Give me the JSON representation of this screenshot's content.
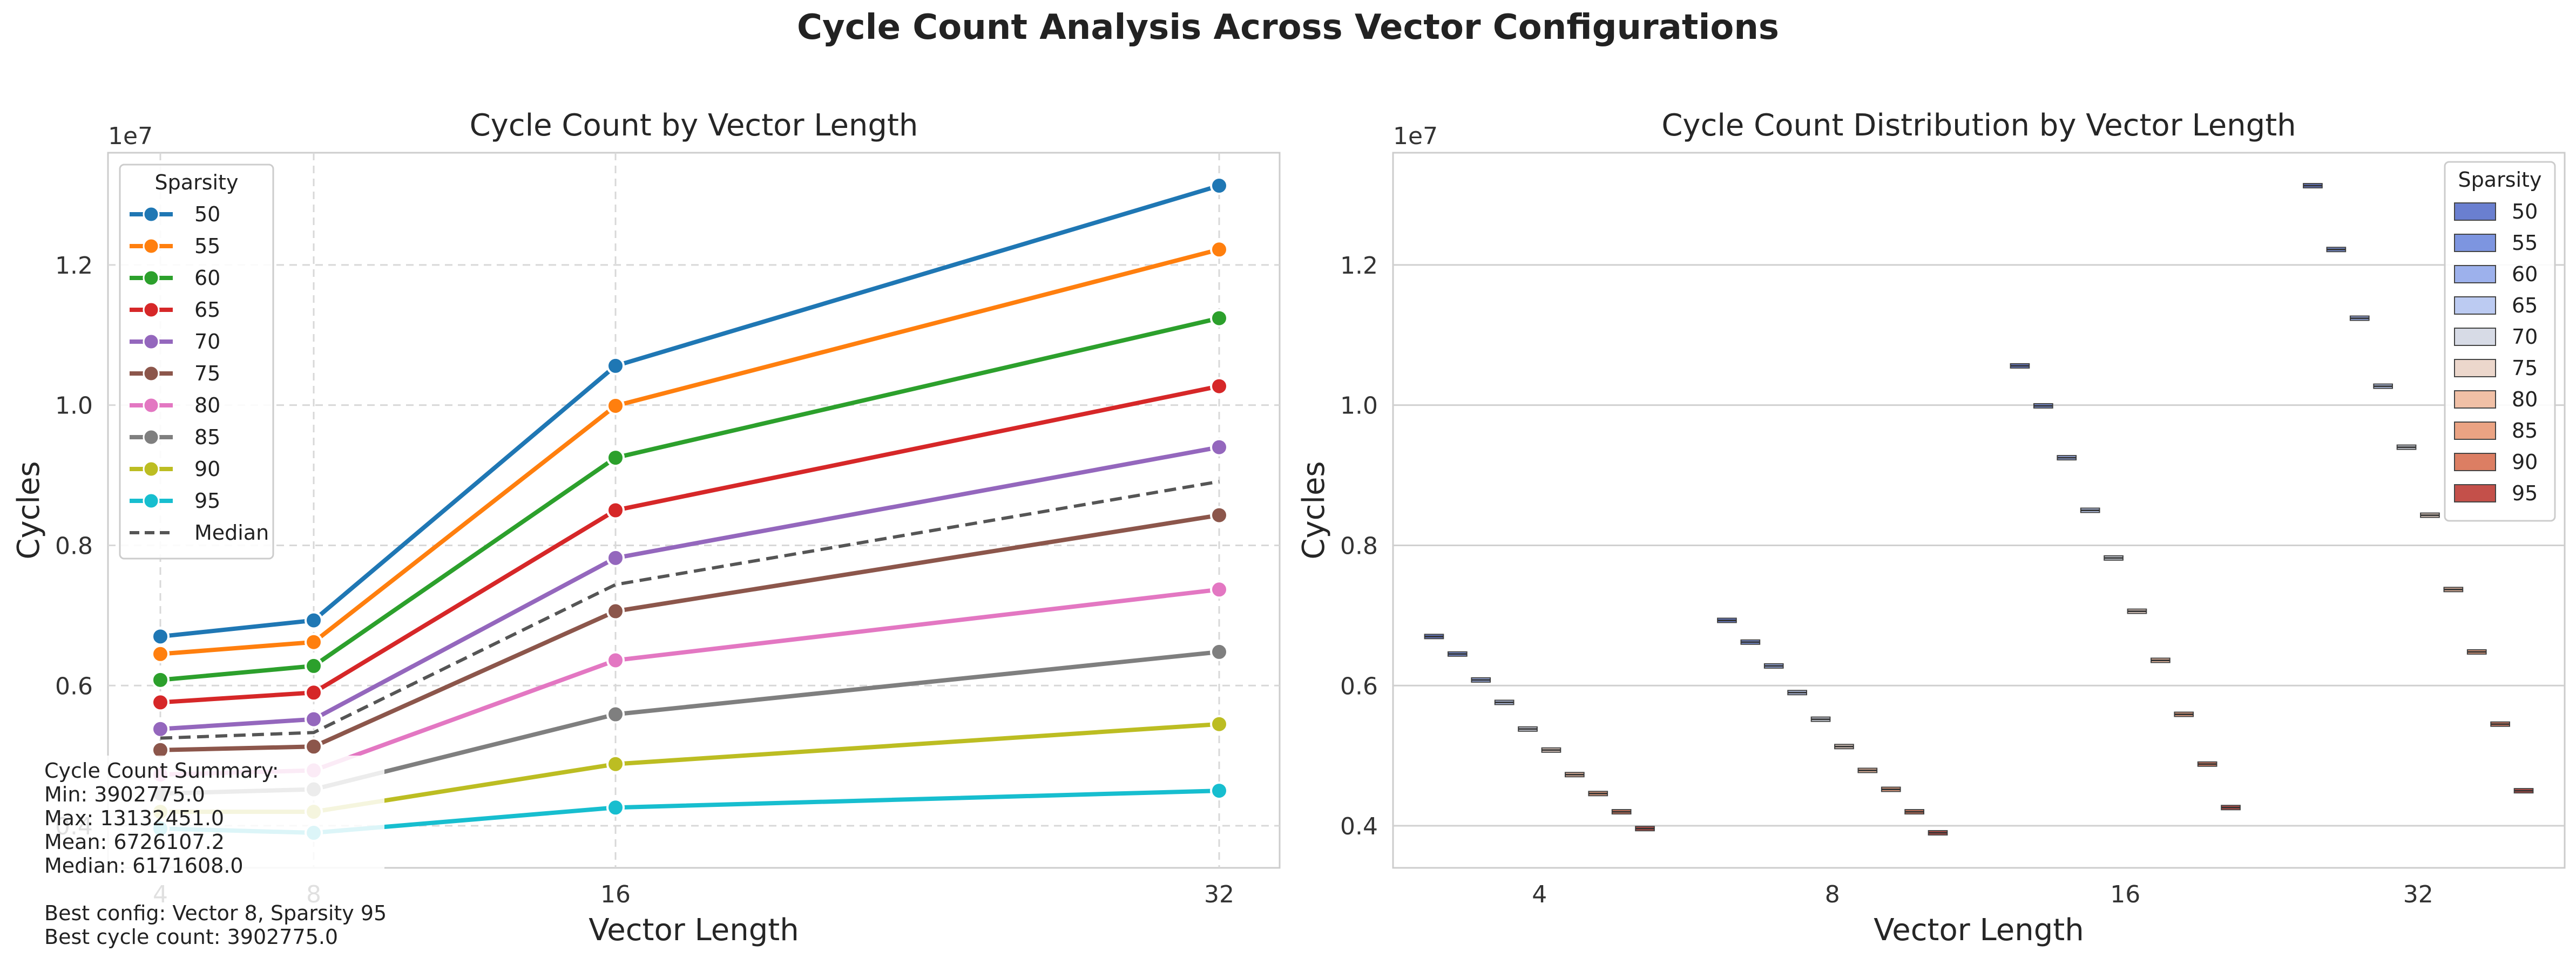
{
  "figure": {
    "suptitle": "Cycle Count Analysis Across Vector Configurations",
    "summary_text": "Cycle Count Summary:\nMin: 3902775.0\nMax: 13132451.0\nMean: 6726107.2\nMedian: 6171608.0\n\nBest config: Vector 8, Sparsity 95\nBest cycle count: 3902775.0"
  },
  "chart_data": [
    {
      "type": "line",
      "title": "Cycle Count by Vector Length",
      "xlabel": "Vector Length",
      "ylabel": "Cycles",
      "y_scale_label": "1e7",
      "x": [
        4,
        8,
        16,
        32
      ],
      "x_tick_labels": [
        "4",
        "8",
        "16",
        "32"
      ],
      "ylim": [
        0.34,
        1.36
      ],
      "y_ticks": [
        0.4,
        0.6,
        0.8,
        1.0,
        1.2
      ],
      "y_tick_labels": [
        "0.4",
        "0.6",
        "0.8",
        "1.0",
        "1.2"
      ],
      "grid": true,
      "legend_title": "Sparsity",
      "legend_position": "upper-left",
      "series": [
        {
          "name": "50",
          "color": "#1f77b4",
          "values": [
            0.67,
            0.693,
            1.056,
            1.313
          ]
        },
        {
          "name": "55",
          "color": "#ff7f0e",
          "values": [
            0.645,
            0.662,
            0.999,
            1.222
          ]
        },
        {
          "name": "60",
          "color": "#2ca02c",
          "values": [
            0.608,
            0.628,
            0.925,
            1.124
          ]
        },
        {
          "name": "65",
          "color": "#d62728",
          "values": [
            0.576,
            0.59,
            0.85,
            1.027
          ]
        },
        {
          "name": "70",
          "color": "#9467bd",
          "values": [
            0.538,
            0.552,
            0.782,
            0.94
          ]
        },
        {
          "name": "75",
          "color": "#8c564b",
          "values": [
            0.508,
            0.513,
            0.706,
            0.843
          ]
        },
        {
          "name": "80",
          "color": "#e377c2",
          "values": [
            0.473,
            0.479,
            0.636,
            0.737
          ]
        },
        {
          "name": "85",
          "color": "#7f7f7f",
          "values": [
            0.446,
            0.452,
            0.559,
            0.648
          ]
        },
        {
          "name": "90",
          "color": "#bcbd22",
          "values": [
            0.42,
            0.42,
            0.488,
            0.545
          ]
        },
        {
          "name": "95",
          "color": "#17becf",
          "values": [
            0.396,
            0.39,
            0.426,
            0.45
          ]
        }
      ],
      "median_series": {
        "name": "Median",
        "color": "#555555",
        "values": [
          0.525,
          0.533,
          0.744,
          0.891
        ]
      }
    },
    {
      "type": "box",
      "title": "Cycle Count Distribution by Vector Length",
      "xlabel": "Vector Length",
      "ylabel": "Cycles",
      "y_scale_label": "1e7",
      "categories": [
        "4",
        "8",
        "16",
        "32"
      ],
      "ylim": [
        0.34,
        1.36
      ],
      "y_ticks": [
        0.4,
        0.6,
        0.8,
        1.0,
        1.2
      ],
      "y_tick_labels": [
        "0.4",
        "0.6",
        "0.8",
        "1.0",
        "1.2"
      ],
      "grid": true,
      "legend_title": "Sparsity",
      "legend_position": "upper-right",
      "series": [
        {
          "name": "50",
          "color": "#6a7fd0",
          "values": [
            0.67,
            0.693,
            1.056,
            1.313
          ]
        },
        {
          "name": "55",
          "color": "#7d95e0",
          "values": [
            0.645,
            0.662,
            0.999,
            1.222
          ]
        },
        {
          "name": "60",
          "color": "#9db1ec",
          "values": [
            0.608,
            0.628,
            0.925,
            1.124
          ]
        },
        {
          "name": "65",
          "color": "#bccbf2",
          "values": [
            0.576,
            0.59,
            0.85,
            1.027
          ]
        },
        {
          "name": "70",
          "color": "#d7dbe6",
          "values": [
            0.538,
            0.552,
            0.782,
            0.94
          ]
        },
        {
          "name": "75",
          "color": "#ecd7cc",
          "values": [
            0.508,
            0.513,
            0.706,
            0.843
          ]
        },
        {
          "name": "80",
          "color": "#f1c0a6",
          "values": [
            0.473,
            0.479,
            0.636,
            0.737
          ]
        },
        {
          "name": "85",
          "color": "#eba383",
          "values": [
            0.446,
            0.452,
            0.559,
            0.648
          ]
        },
        {
          "name": "90",
          "color": "#dc7e63",
          "values": [
            0.42,
            0.42,
            0.488,
            0.545
          ]
        },
        {
          "name": "95",
          "color": "#c4504a",
          "values": [
            0.396,
            0.39,
            0.426,
            0.45
          ]
        }
      ]
    }
  ]
}
